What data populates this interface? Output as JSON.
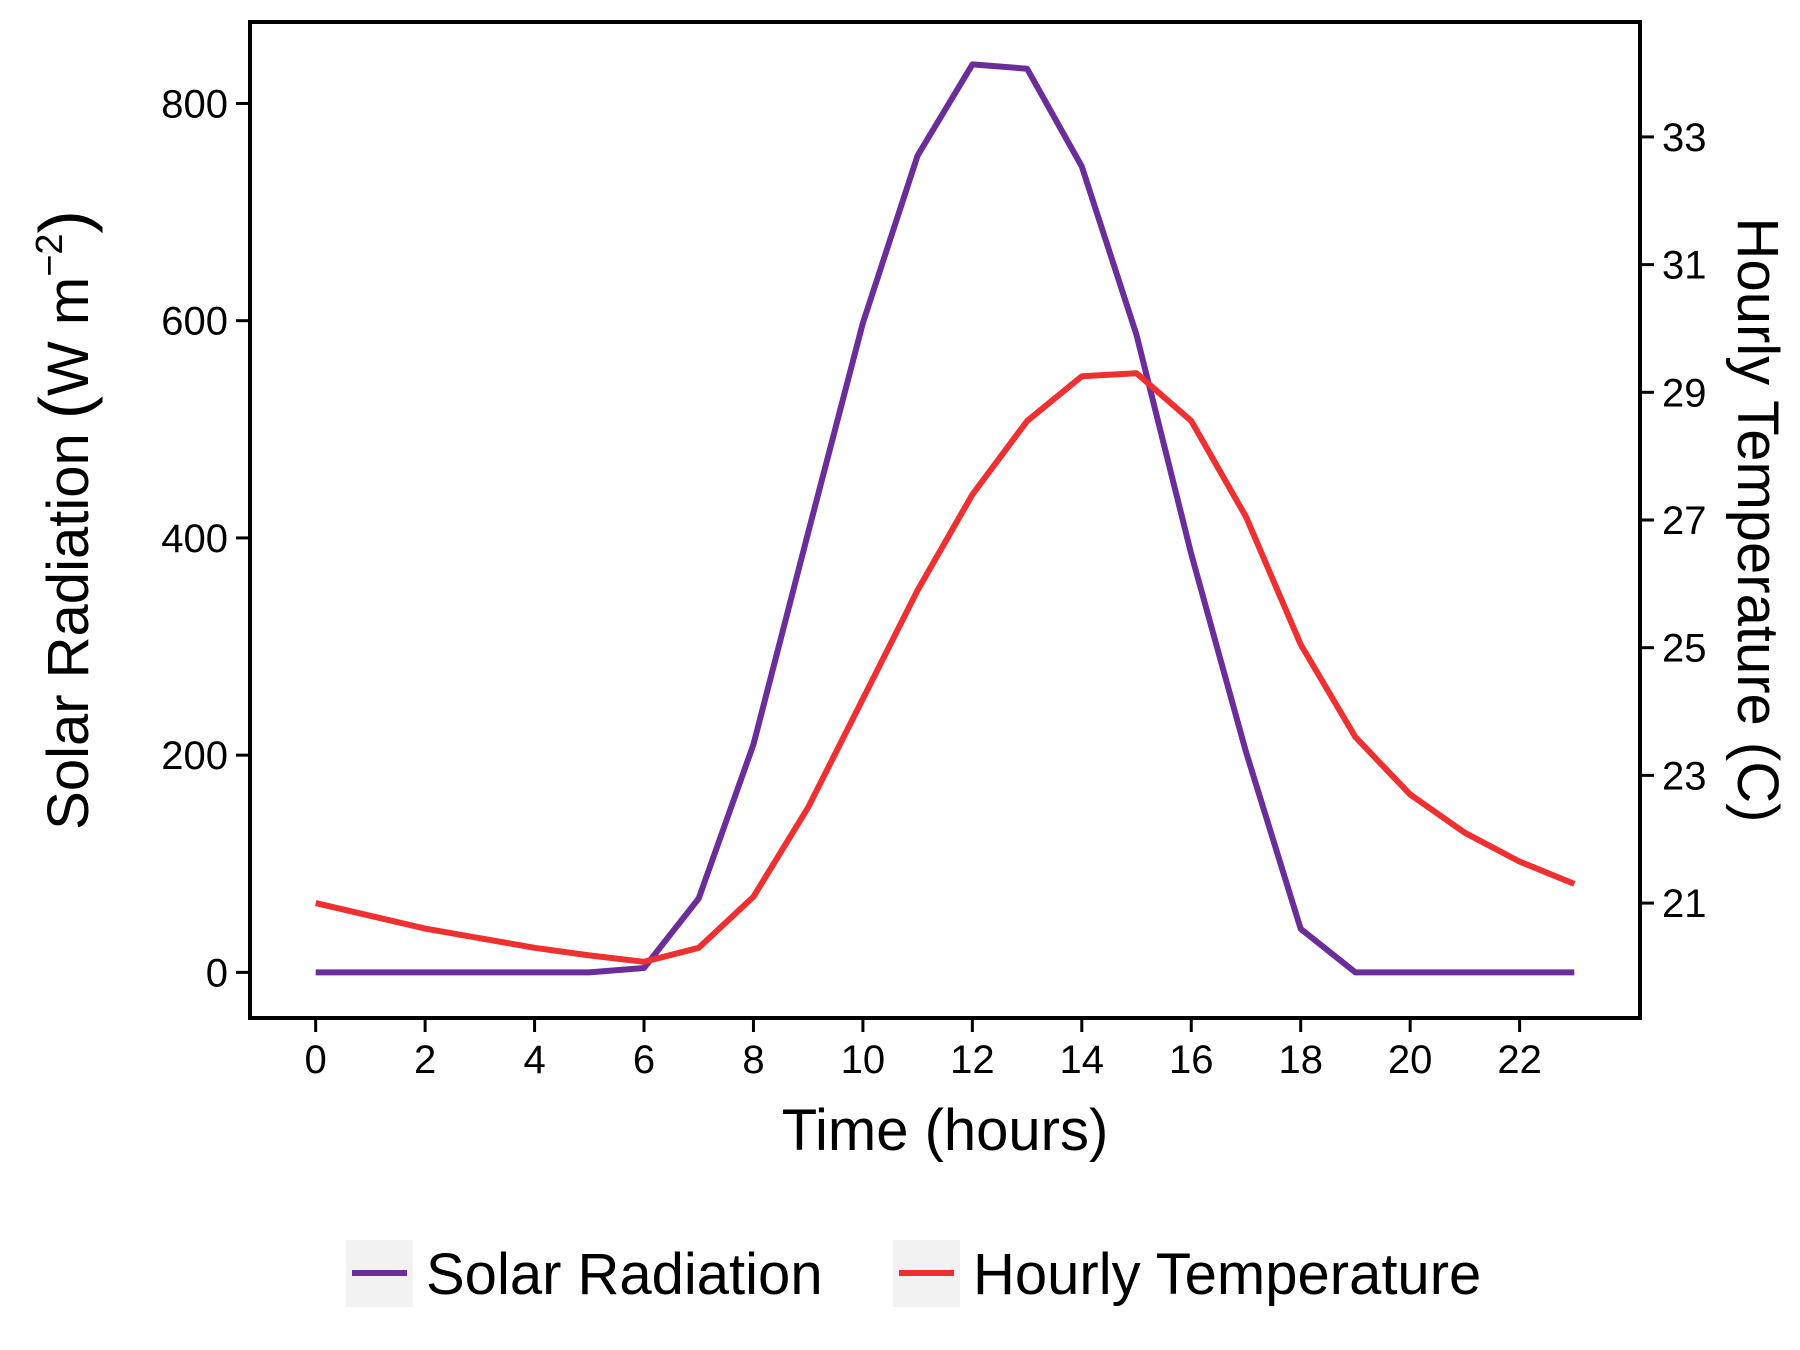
{
  "chart_data": {
    "type": "line",
    "x": [
      0,
      1,
      2,
      3,
      4,
      5,
      6,
      7,
      8,
      9,
      10,
      11,
      12,
      13,
      14,
      15,
      16,
      17,
      18,
      19,
      20,
      21,
      22,
      23
    ],
    "xlabel": "Time (hours)",
    "xlim": [
      -1.2,
      24.2
    ],
    "xticks": [
      0,
      2,
      4,
      6,
      8,
      10,
      12,
      14,
      16,
      18,
      20,
      22
    ],
    "ylabel_left": {
      "main": "Solar Radiation",
      "open": "(",
      "unit": "W m",
      "exponent": "−2",
      "close": ")"
    },
    "ylim_left": [
      -42,
      875
    ],
    "yticks_left": [
      0,
      200,
      400,
      600,
      800
    ],
    "ylabel_right": "Hourly Temperature (C)",
    "ylim_right": [
      19.2,
      34.8
    ],
    "yticks_right": [
      21,
      23,
      25,
      27,
      29,
      31,
      33
    ],
    "grid": false,
    "legend_position": "bottom",
    "series": [
      {
        "name": "Solar Radiation",
        "axis": "left",
        "color": "#6a2d9a",
        "values": [
          0,
          0,
          0,
          0,
          0,
          0,
          4,
          68,
          210,
          405,
          598,
          752,
          836,
          832,
          742,
          587,
          385,
          203,
          40,
          0,
          0,
          0,
          0,
          0
        ]
      },
      {
        "name": "Hourly Temperature",
        "axis": "right",
        "color": "#f03030",
        "values": [
          21.0,
          20.8,
          20.6,
          20.45,
          20.3,
          20.18,
          20.08,
          20.3,
          21.1,
          22.5,
          24.2,
          25.9,
          27.4,
          28.55,
          29.25,
          29.3,
          28.55,
          27.05,
          25.05,
          23.6,
          22.7,
          22.1,
          21.65,
          21.3
        ]
      }
    ]
  }
}
